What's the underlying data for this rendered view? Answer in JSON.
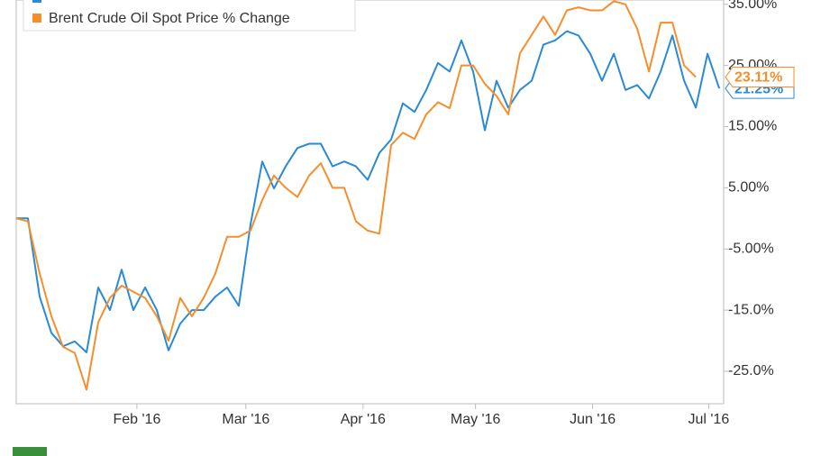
{
  "chart_data": {
    "type": "line",
    "xlim": [
      0,
      60.38
    ],
    "xticks": [
      {
        "value": 10.3,
        "label": "Feb '16"
      },
      {
        "value": 19.6,
        "label": "Mar '16"
      },
      {
        "value": 29.6,
        "label": "Apr '16"
      },
      {
        "value": 39.2,
        "label": "May '16"
      },
      {
        "value": 49.2,
        "label": "Jun '16"
      },
      {
        "value": 59.1,
        "label": "Jul '16"
      }
    ],
    "ylim": [
      -30.3,
      35.7
    ],
    "yticks": [
      {
        "value": 35,
        "label": "35.00%"
      },
      {
        "value": 25,
        "label": "25.00%"
      },
      {
        "value": 15,
        "label": "15.00%"
      },
      {
        "value": 5,
        "label": "5.00%"
      },
      {
        "value": -5,
        "label": "-5.00%"
      },
      {
        "value": -15,
        "label": "-15.0%"
      },
      {
        "value": -25,
        "label": "-25.0%"
      }
    ],
    "series": [
      {
        "color": "#2a8ad6",
        "values": [
          0,
          0,
          -12.8,
          -18.7,
          -20.9,
          -20.1,
          -21.9,
          -11.3,
          -15.0,
          -8.4,
          -15.0,
          -11.3,
          -15.0,
          -21.6,
          -17.2,
          -15.0,
          -15.0,
          -12.8,
          -11.3,
          -14.3,
          -1.0,
          9.3,
          4.9,
          8.5,
          11.5,
          12.2,
          12.2,
          8.5,
          9.3,
          8.5,
          6.3,
          10.7,
          12.9,
          18.8,
          17.4,
          21.0,
          25.4,
          24.0,
          29.1,
          24.0,
          14.4,
          22.5,
          18.1,
          21.0,
          22.5,
          28.4,
          29.1,
          30.6,
          29.9,
          26.9,
          22.5,
          26.9,
          21.0,
          21.8,
          19.6,
          24.0,
          29.9,
          22.5,
          18.1,
          26.9,
          21.25
        ],
        "value_labels": [
          null,
          null,
          null,
          null,
          null,
          null,
          null,
          null,
          null,
          null,
          null,
          null,
          null,
          null,
          null,
          null,
          null,
          null,
          null,
          null,
          null,
          null,
          null,
          null,
          null,
          null,
          null,
          null,
          null,
          null,
          null,
          null,
          null,
          null,
          null,
          null,
          null,
          null,
          null,
          null,
          null,
          null,
          null,
          null,
          null,
          null,
          null,
          null,
          null,
          null,
          null,
          null,
          null,
          null,
          null,
          null,
          null,
          null,
          null,
          null,
          "21.25%"
        ]
      },
      {
        "name": "Brent Crude Oil Spot Price % Change",
        "color": "#f68e2b",
        "values": [
          0,
          -0.5,
          -9,
          -16,
          -21,
          -22,
          -28,
          -17,
          -13,
          -11,
          -12,
          -13,
          -16,
          -20,
          -13,
          -16,
          -13,
          -9,
          -3,
          -3,
          -2,
          3,
          7,
          5,
          3.5,
          7,
          9,
          5,
          5,
          -0.5,
          -2,
          -2.5,
          12,
          14,
          13,
          17,
          19,
          18,
          25,
          25,
          22,
          20,
          17,
          27,
          30,
          33,
          30,
          34,
          34.5,
          34,
          34,
          35.5,
          35,
          31,
          24,
          32,
          32,
          25,
          23.11,
          null,
          null
        ],
        "value_labels": [
          null,
          null,
          null,
          null,
          null,
          null,
          null,
          null,
          null,
          null,
          null,
          null,
          null,
          null,
          null,
          null,
          null,
          null,
          null,
          null,
          null,
          null,
          null,
          null,
          null,
          null,
          null,
          null,
          null,
          null,
          null,
          null,
          null,
          null,
          null,
          null,
          null,
          null,
          null,
          null,
          null,
          null,
          null,
          null,
          null,
          null,
          null,
          null,
          null,
          null,
          null,
          null,
          null,
          null,
          null,
          null,
          null,
          null,
          "23.11%",
          null,
          null
        ]
      }
    ]
  }
}
